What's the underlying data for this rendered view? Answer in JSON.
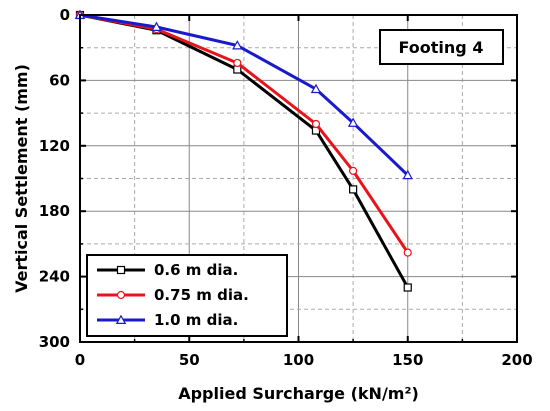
{
  "chart_data": {
    "type": "line",
    "xlabel": "Applied Surcharge (kN/m²)",
    "ylabel": "Vertical Settlement (mm)",
    "xlim": [
      0,
      200
    ],
    "ylim": [
      0,
      300
    ],
    "y_reversed": true,
    "x_ticks": [
      0,
      50,
      100,
      150,
      200
    ],
    "y_ticks": [
      0,
      60,
      120,
      180,
      240,
      300
    ],
    "x_tick_labels": [
      "0",
      "50",
      "100",
      "150",
      "200"
    ],
    "y_tick_labels": [
      "0",
      "60",
      "120",
      "180",
      "240",
      "300"
    ],
    "grid": true,
    "legend_position": "bottom-left",
    "annotation": "Footing 4",
    "series": [
      {
        "name": "0.6 m dia.",
        "color": "#000000",
        "marker": "square",
        "x": [
          0,
          35,
          72,
          108,
          125,
          150
        ],
        "y": [
          0,
          14,
          50,
          106,
          160,
          250
        ]
      },
      {
        "name": "0.75 m dia.",
        "color": "#e8141b",
        "marker": "circle",
        "x": [
          0,
          35,
          72,
          108,
          125,
          150
        ],
        "y": [
          0,
          13,
          44,
          100,
          143,
          218
        ]
      },
      {
        "name": "1.0 m dia.",
        "color": "#1a1acd",
        "marker": "triangle",
        "x": [
          0,
          35,
          72,
          108,
          125,
          150
        ],
        "y": [
          0,
          11,
          28,
          68,
          99,
          147
        ]
      }
    ]
  }
}
